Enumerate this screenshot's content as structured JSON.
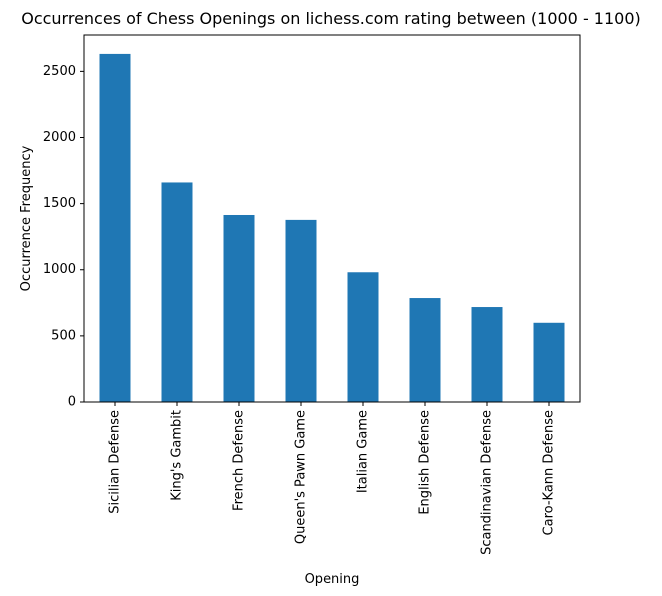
{
  "chart_data": {
    "type": "bar",
    "title": "Occurrences of Chess Openings on lichess.com rating between (1000 - 1100)",
    "xlabel": "Opening",
    "ylabel": "Occurrence Frequency",
    "categories": [
      "Sicilian Defense",
      "King's Gambit",
      "French Defense",
      "Queen's Pawn Game",
      "Italian Game",
      "English Defense",
      "Scandinavian Defense",
      "Caro-Kann Defense"
    ],
    "values": [
      2632,
      1660,
      1414,
      1377,
      981,
      786,
      718,
      599
    ],
    "ylim": [
      0,
      2775
    ],
    "yticks": [
      0,
      500,
      1000,
      1500,
      2000,
      2500
    ],
    "bar_color": "#1f77b4",
    "grid": false,
    "legend": "none"
  }
}
